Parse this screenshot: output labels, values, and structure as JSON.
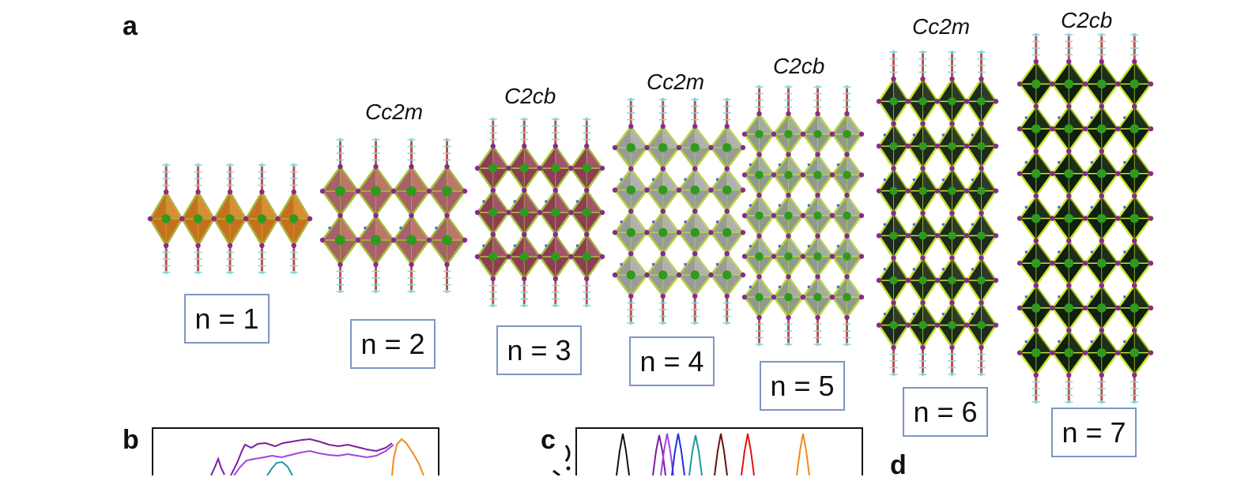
{
  "panels": {
    "a": "a",
    "b": "b",
    "c": "c",
    "d": "d"
  },
  "structures": [
    {
      "n_label": "n = 1",
      "space_group": "",
      "layers": 1,
      "face": "#c8701e",
      "accent": "#e8a24a",
      "edge": "#a6b53a"
    },
    {
      "n_label": "n = 2",
      "space_group": "Cc2m",
      "layers": 2,
      "face": "#a8606a",
      "accent": "#c98a6a",
      "edge": "#9fc430"
    },
    {
      "n_label": "n = 3",
      "space_group": "C2cb",
      "layers": 3,
      "face": "#8e3d55",
      "accent": "#b06a78",
      "edge": "#a3c836"
    },
    {
      "n_label": "n = 4",
      "space_group": "Cc2m",
      "layers": 4,
      "face": "#9a9a9a",
      "accent": "#c4c4c4",
      "edge": "#b6d43a"
    },
    {
      "n_label": "n = 5",
      "space_group": "C2cb",
      "layers": 5,
      "face": "#8f9a8c",
      "accent": "#b7beb4",
      "edge": "#bcd83c"
    },
    {
      "n_label": "n = 6",
      "space_group": "Cc2m",
      "layers": 6,
      "face": "#1d2b1d",
      "accent": "#3a4a30",
      "edge": "#c6e02a"
    },
    {
      "n_label": "n = 7",
      "space_group": "C2cb",
      "layers": 7,
      "face": "#0f1f10",
      "accent": "#2a3a22",
      "edge": "#cde42a"
    }
  ],
  "colors": {
    "metal": "#2e9a1e",
    "halide": "#8a2a8a",
    "carbon": "#c05050",
    "hydrogen": "#7fd8d8",
    "nitrogen": "#4a6ad8"
  }
}
